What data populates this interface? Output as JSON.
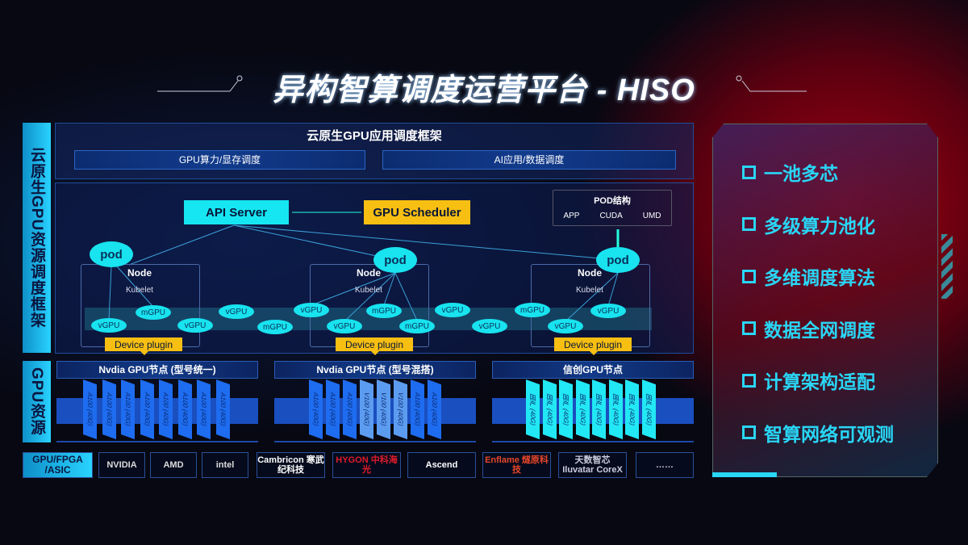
{
  "title": "异构智算调度运营平台 - HISO",
  "left_labels": {
    "framework": "云原生GPU资源调度框架",
    "gpu": "GPU资源"
  },
  "top": {
    "title": "云原生GPU应用调度框架",
    "bars": [
      "GPU算力/显存调度",
      "AI应用/数据调度"
    ]
  },
  "diagram": {
    "api_server": "API Server",
    "gpu_scheduler": "GPU Scheduler",
    "pod_struct": {
      "title": "POD结构",
      "items": [
        "APP",
        "CUDA",
        "UMD"
      ]
    },
    "pod": "pod",
    "node": "Node",
    "kubelet": "Kubelet",
    "device_plugin": "Device plugin",
    "units": [
      "vGPU",
      "mGPU",
      "vGPU",
      "vGPU",
      "mGPU",
      "vGPU",
      "vGPU",
      "mGPU",
      "mGPU",
      "vGPU",
      "vGPU",
      "mGPU",
      "vGPU",
      "vGPU"
    ]
  },
  "gpu_nodes": [
    {
      "title": "Nvdia GPU节点 (型号统一)",
      "cards": [
        "A100 (40G)",
        "A100 (40G)",
        "A100 (40G)",
        "A100 (40G)",
        "A100 (40G)",
        "A100 (40G)",
        "A100 (40G)",
        "A100 (40G)"
      ]
    },
    {
      "title": "Nvdia GPU节点 (型号混搭)",
      "cards": [
        "A100 (40G)",
        "A100 (40G)",
        "A100 (40G)",
        "V100 (40G)",
        "V100 (40G)",
        "V100 (40G)",
        "A100 (40G)",
        "A100 (40G)"
      ]
    },
    {
      "title": "信创GPU节点",
      "cards": [
        "国产 (40G)",
        "国产 (40G)",
        "国产 (40G)",
        "国产 (40G)",
        "国产 (40G)",
        "国产 (40G)",
        "国产 (40G)",
        "国产 (40G)"
      ]
    }
  ],
  "vendors": {
    "label": "GPU/FPGA /ASIC",
    "items": [
      "NVIDIA",
      "AMD",
      "intel",
      "Cambricon 寒武纪科技",
      "HYGON 中科海光",
      "Ascend",
      "Enflame 燧原科技",
      "天数智芯 Iluvatar CoreX",
      "……"
    ]
  },
  "features": [
    "一池多芯",
    "多级算力池化",
    "多维调度算法",
    "数据全网调度",
    "计算架构适配",
    "智算网络可观测"
  ],
  "colors": {
    "cyan": "#16e6f2",
    "gold": "#f7bf12",
    "blue": "#1a64e8",
    "red": "#a0000f"
  }
}
